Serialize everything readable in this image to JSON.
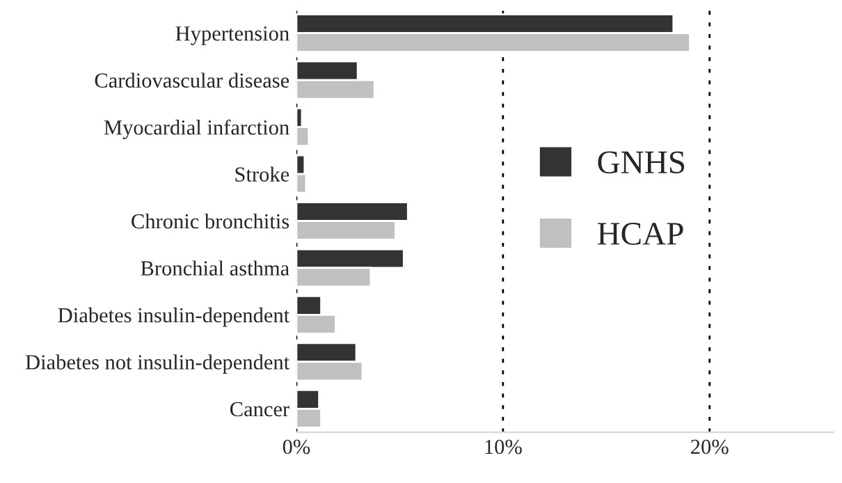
{
  "chart_data": {
    "type": "bar",
    "orientation": "horizontal",
    "categories": [
      "Hypertension",
      "Cardiovascular disease",
      "Myocardial infarction",
      "Stroke",
      "Chronic bronchitis",
      "Bronchial asthma",
      "Diabetes insulin-dependent",
      "Diabetes not insulin-dependent",
      "Cancer"
    ],
    "series": [
      {
        "name": "GNHS",
        "color": "#333333",
        "values": [
          18.25,
          2.97,
          0.27,
          0.4,
          5.4,
          5.2,
          1.2,
          2.9,
          1.1
        ]
      },
      {
        "name": "HCAP",
        "color": "#c0c0c0",
        "values": [
          19.05,
          3.78,
          0.6,
          0.47,
          4.8,
          3.6,
          1.9,
          3.2,
          1.2
        ]
      }
    ],
    "xlim": [
      0,
      26
    ],
    "xticks": [
      {
        "value": 0,
        "label": "0%"
      },
      {
        "value": 10,
        "label": "10%"
      },
      {
        "value": 20,
        "label": "20%"
      }
    ],
    "grid": "x",
    "legend": "right"
  }
}
